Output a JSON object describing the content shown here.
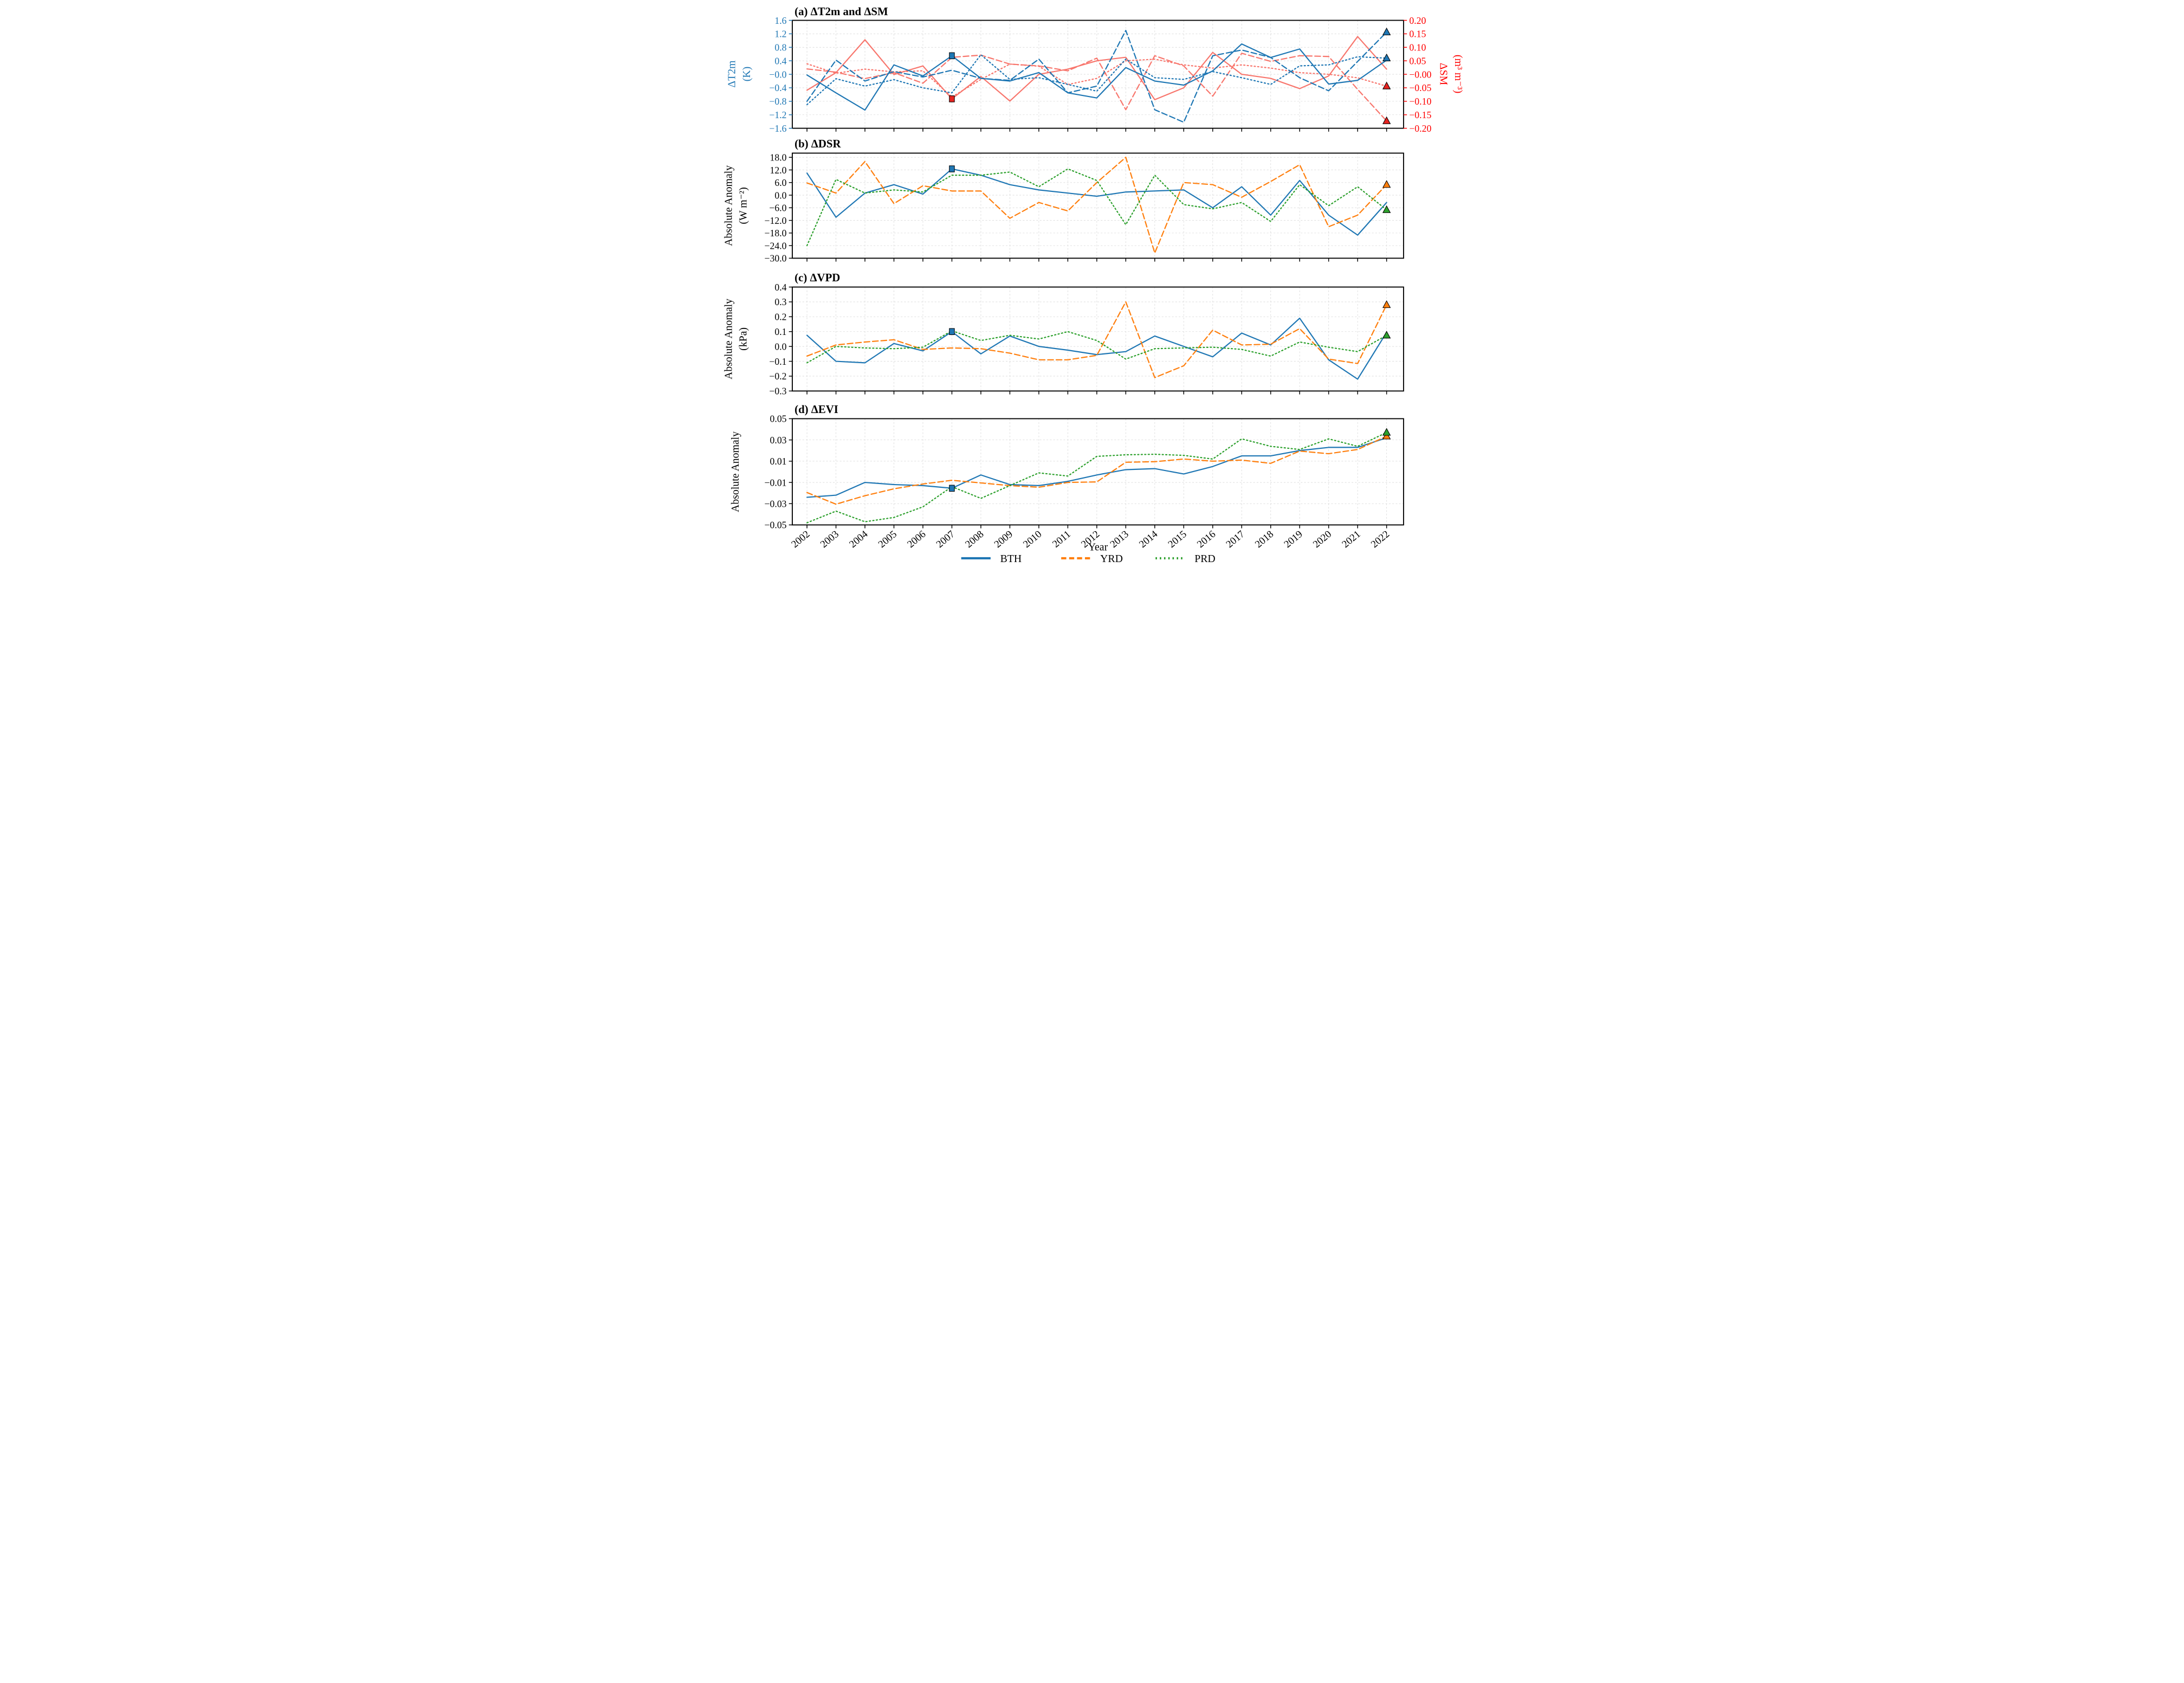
{
  "figure": {
    "xlabel": "Year",
    "years": [
      2002,
      2003,
      2004,
      2005,
      2006,
      2007,
      2008,
      2009,
      2010,
      2011,
      2012,
      2013,
      2014,
      2015,
      2016,
      2017,
      2018,
      2019,
      2020,
      2021,
      2022
    ],
    "year_labels": [
      "2002",
      "2003",
      "2004",
      "2005",
      "2006",
      "2007",
      "2008",
      "2009",
      "2010",
      "2011",
      "2012",
      "2013",
      "2014",
      "2015",
      "2016",
      "2017",
      "2018",
      "2019",
      "2020",
      "2021",
      "2022"
    ],
    "legend": [
      {
        "label": "BTH",
        "color": "#1f77b4",
        "style": "solid"
      },
      {
        "label": "YRD",
        "color": "#ff7f0e",
        "style": "dashed"
      },
      {
        "label": "PRD",
        "color": "#2ca02c",
        "style": "dotted"
      }
    ],
    "colors": {
      "blue": "#1f77b4",
      "salmon": "#f8766d",
      "orange": "#ff7f0e",
      "green": "#2ca02c",
      "marker_red": "#e62320",
      "axis_red": "#ff0000",
      "grid": "#d9d9d9"
    }
  },
  "chart_data": [
    {
      "type": "line",
      "panel": "a",
      "title": "(a) ΔT2m and ΔSM",
      "left_axis": {
        "label": "ΔT2m",
        "unit": "(K)",
        "color": "#1f77b4",
        "range": [
          -1.6,
          1.6
        ],
        "ticks": [
          "1.6",
          "1.2",
          "0.8",
          "0.4",
          "−0.0",
          "−0.4",
          "−0.8",
          "−1.2",
          "−1.6"
        ]
      },
      "right_axis": {
        "label": "ΔSM",
        "unit": "(m³ m⁻³)",
        "color": "#ff0000",
        "range": [
          -0.2,
          0.2
        ],
        "ticks": [
          "0.20",
          "0.15",
          "0.10",
          "0.05",
          "−0.00",
          "−0.05",
          "−0.10",
          "−0.15",
          "−0.20"
        ]
      },
      "series": [
        {
          "name": "BTH ΔSM",
          "axis": "right",
          "color": "#f8766d",
          "style": "solid",
          "values": [
            -0.059,
            0.006,
            0.128,
            -0.001,
            0.031,
            -0.091,
            -0.008,
            -0.099,
            0.0,
            0.019,
            0.05,
            0.063,
            -0.094,
            -0.05,
            0.081,
            0.0,
            -0.015,
            -0.053,
            -0.006,
            0.14,
            0.019
          ]
        },
        {
          "name": "YRD ΔSM",
          "axis": "right",
          "color": "#f8766d",
          "style": "dashed",
          "values": [
            0.02,
            0.008,
            -0.016,
            0.006,
            -0.033,
            0.063,
            0.071,
            0.038,
            0.031,
            0.013,
            0.06,
            -0.131,
            0.069,
            0.031,
            -0.081,
            0.078,
            0.048,
            0.069,
            0.066,
            -0.056,
            -0.173
          ]
        },
        {
          "name": "PRD ΔSM",
          "axis": "right",
          "color": "#f8766d",
          "style": "dotted",
          "values": [
            0.039,
            0.004,
            0.019,
            0.009,
            0.013,
            -0.084,
            -0.019,
            0.038,
            0.03,
            -0.038,
            -0.015,
            0.05,
            0.056,
            0.035,
            0.023,
            0.035,
            0.023,
            0.006,
            0.0,
            -0.013,
            -0.044
          ]
        },
        {
          "name": "BTH ΔT2m",
          "axis": "left",
          "color": "#1f77b4",
          "style": "solid",
          "values": [
            -0.02,
            -0.55,
            -1.06,
            0.28,
            -0.05,
            0.55,
            -0.12,
            -0.2,
            0.05,
            -0.55,
            -0.7,
            0.2,
            -0.2,
            -0.32,
            0.1,
            0.9,
            0.5,
            0.75,
            -0.29,
            -0.18,
            0.42
          ]
        },
        {
          "name": "YRD ΔT2m",
          "axis": "left",
          "color": "#1f77b4",
          "style": "dashed",
          "values": [
            -0.8,
            0.42,
            -0.2,
            0.08,
            -0.08,
            0.12,
            -0.12,
            -0.18,
            0.45,
            -0.55,
            -0.35,
            1.3,
            -1.05,
            -1.42,
            0.55,
            0.72,
            0.5,
            -0.1,
            -0.49,
            0.38,
            1.25
          ]
        },
        {
          "name": "PRD ΔT2m",
          "axis": "left",
          "color": "#1f77b4",
          "style": "dotted",
          "values": [
            -0.9,
            -0.13,
            -0.35,
            -0.16,
            -0.4,
            -0.55,
            0.58,
            -0.15,
            -0.1,
            -0.3,
            -0.5,
            0.45,
            -0.1,
            -0.15,
            0.08,
            -0.1,
            -0.3,
            0.25,
            0.28,
            0.52,
            0.48
          ]
        }
      ],
      "markers": [
        {
          "series": "BTH ΔT2m",
          "year": 2007,
          "shape": "square",
          "color": "#1f77b4"
        },
        {
          "series": "BTH ΔSM",
          "year": 2007,
          "shape": "square",
          "color": "#e62320"
        },
        {
          "series": "YRD ΔT2m",
          "year": 2022,
          "shape": "triangle",
          "color": "#1f77b4"
        },
        {
          "series": "PRD ΔT2m",
          "year": 2022,
          "shape": "triangle",
          "color": "#1f77b4"
        },
        {
          "series": "PRD ΔSM",
          "year": 2022,
          "shape": "triangle",
          "color": "#e62320"
        },
        {
          "series": "YRD ΔSM",
          "year": 2022,
          "shape": "triangle",
          "color": "#e62320"
        }
      ]
    },
    {
      "type": "line",
      "panel": "b",
      "title": "(b) ΔDSR",
      "left_axis": {
        "label": "Absolute Anomaly",
        "unit": "(W m⁻²)",
        "color": "#000000",
        "range": [
          -30,
          20
        ],
        "ticks": [
          "18.0",
          "12.0",
          "6.0",
          "0.0",
          "−6.0",
          "−12.0",
          "−18.0",
          "−24.0",
          "−30.0"
        ]
      },
      "series": [
        {
          "name": "BTH",
          "axis": "left",
          "color": "#1f77b4",
          "style": "solid",
          "values": [
            10.5,
            -10.5,
            1.0,
            5.0,
            0.5,
            12.5,
            9.5,
            5.0,
            2.5,
            1.0,
            -0.5,
            1.5,
            2.0,
            2.5,
            -6.0,
            4.0,
            -9.5,
            7.0,
            -9.5,
            -19.0,
            -3.5
          ]
        },
        {
          "name": "YRD",
          "axis": "left",
          "color": "#ff7f0e",
          "style": "dashed",
          "values": [
            5.8,
            1.0,
            16.0,
            -4.0,
            4.5,
            2.0,
            2.0,
            -11.0,
            -3.5,
            -7.5,
            6.0,
            18.0,
            -27.5,
            6.0,
            5.0,
            -1.0,
            6.5,
            14.5,
            -15.0,
            -9.5,
            5.0
          ]
        },
        {
          "name": "PRD",
          "axis": "left",
          "color": "#2ca02c",
          "style": "dotted",
          "values": [
            -24.0,
            7.5,
            1.0,
            2.5,
            1.5,
            9.5,
            9.5,
            11.0,
            4.0,
            12.5,
            7.0,
            -14.0,
            9.5,
            -4.5,
            -6.5,
            -3.5,
            -12.5,
            5.0,
            -5.0,
            4.0,
            -7.0
          ]
        }
      ],
      "markers": [
        {
          "series": "BTH",
          "year": 2007,
          "shape": "square",
          "color": "#1f77b4"
        },
        {
          "series": "YRD",
          "year": 2022,
          "shape": "triangle",
          "color": "#ff7f0e"
        },
        {
          "series": "PRD",
          "year": 2022,
          "shape": "triangle",
          "color": "#2ca02c"
        }
      ]
    },
    {
      "type": "line",
      "panel": "c",
      "title": "(c) ΔVPD",
      "left_axis": {
        "label": "Absolute Anomaly",
        "unit": "(kPa)",
        "color": "#000000",
        "range": [
          -0.3,
          0.4
        ],
        "ticks": [
          "0.4",
          "0.3",
          "0.2",
          "0.1",
          "0.0",
          "−0.1",
          "−0.2",
          "−0.3"
        ]
      },
      "series": [
        {
          "name": "BTH",
          "axis": "left",
          "color": "#1f77b4",
          "style": "solid",
          "values": [
            0.075,
            -0.1,
            -0.11,
            0.02,
            -0.03,
            0.1,
            -0.05,
            0.07,
            0.0,
            -0.025,
            -0.055,
            -0.035,
            0.07,
            0.0,
            -0.07,
            0.09,
            0.01,
            0.19,
            -0.09,
            -0.22,
            0.095
          ]
        },
        {
          "name": "YRD",
          "axis": "left",
          "color": "#ff7f0e",
          "style": "dashed",
          "values": [
            -0.065,
            0.01,
            0.03,
            0.045,
            -0.02,
            -0.01,
            -0.015,
            -0.045,
            -0.09,
            -0.09,
            -0.06,
            0.3,
            -0.21,
            -0.13,
            0.11,
            0.01,
            0.015,
            0.12,
            -0.085,
            -0.115,
            0.28
          ]
        },
        {
          "name": "PRD",
          "axis": "left",
          "color": "#2ca02c",
          "style": "dotted",
          "values": [
            -0.11,
            0.0,
            -0.01,
            -0.015,
            -0.005,
            0.105,
            0.04,
            0.075,
            0.05,
            0.1,
            0.04,
            -0.085,
            -0.015,
            -0.01,
            -0.005,
            -0.02,
            -0.065,
            0.03,
            -0.005,
            -0.035,
            0.075
          ]
        }
      ],
      "markers": [
        {
          "series": "BTH",
          "year": 2007,
          "shape": "square",
          "color": "#1f77b4"
        },
        {
          "series": "YRD",
          "year": 2022,
          "shape": "triangle",
          "color": "#ff7f0e"
        },
        {
          "series": "PRD",
          "year": 2022,
          "shape": "triangle",
          "color": "#2ca02c"
        }
      ]
    },
    {
      "type": "line",
      "panel": "d",
      "title": "(d) ΔEVI",
      "left_axis": {
        "label": "Absolute Anomaly",
        "unit": "",
        "color": "#000000",
        "range": [
          -0.05,
          0.05
        ],
        "ticks": [
          "0.05",
          "0.03",
          "0.01",
          "−0.01",
          "−0.03",
          "−0.05"
        ]
      },
      "series": [
        {
          "name": "BTH",
          "axis": "left",
          "color": "#1f77b4",
          "style": "solid",
          "values": [
            -0.024,
            -0.022,
            -0.01,
            -0.012,
            -0.013,
            -0.0155,
            -0.003,
            -0.012,
            -0.013,
            -0.009,
            -0.003,
            0.002,
            0.003,
            -0.002,
            0.005,
            0.015,
            0.015,
            0.02,
            0.023,
            0.023,
            0.032
          ]
        },
        {
          "name": "YRD",
          "axis": "left",
          "color": "#ff7f0e",
          "style": "dashed",
          "values": [
            -0.0195,
            -0.0305,
            -0.0225,
            -0.016,
            -0.0115,
            -0.008,
            -0.0105,
            -0.013,
            -0.0145,
            -0.01,
            -0.0095,
            0.009,
            0.0095,
            0.012,
            0.01,
            0.011,
            0.008,
            0.0195,
            0.017,
            0.021,
            0.0335
          ]
        },
        {
          "name": "PRD",
          "axis": "left",
          "color": "#2ca02c",
          "style": "dotted",
          "values": [
            -0.048,
            -0.037,
            -0.047,
            -0.043,
            -0.033,
            -0.014,
            -0.025,
            -0.013,
            -0.001,
            -0.004,
            0.0145,
            0.016,
            0.0165,
            0.0155,
            0.012,
            0.031,
            0.024,
            0.021,
            0.031,
            0.024,
            0.037
          ]
        }
      ],
      "markers": [
        {
          "series": "BTH",
          "year": 2007,
          "shape": "square",
          "color": "#1f77b4"
        },
        {
          "series": "YRD",
          "year": 2022,
          "shape": "triangle",
          "color": "#ff7f0e"
        },
        {
          "series": "PRD",
          "year": 2022,
          "shape": "triangle",
          "color": "#2ca02c"
        }
      ]
    }
  ]
}
